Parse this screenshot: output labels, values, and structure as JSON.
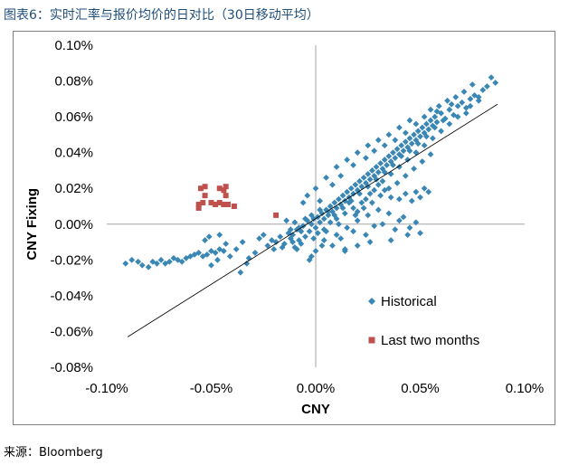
{
  "figure": {
    "title": "图表6：实时汇率与报价均价的日对比（30日移动平均）",
    "source": "来源：Bloomberg"
  },
  "colors": {
    "historical": "#3a87b5",
    "last_two_months": "#c0504d",
    "axis": "#a6a6a6",
    "trend": "#000000"
  },
  "chart_data": {
    "type": "scatter",
    "title": "",
    "xlabel": "CNY",
    "ylabel": "CNY Fixing",
    "xlim": [
      -0.1,
      0.1
    ],
    "ylim": [
      -0.08,
      0.1
    ],
    "x_ticks": [
      "-0.10%",
      "-0.05%",
      "0.00%",
      "0.05%",
      "0.10%"
    ],
    "y_ticks": [
      "0.10%",
      "0.08%",
      "0.06%",
      "0.04%",
      "0.02%",
      "0.00%",
      "-0.02%",
      "-0.04%",
      "-0.06%",
      "-0.08%"
    ],
    "legend": [
      "Historical",
      "Last two months"
    ],
    "trendline": {
      "x": [
        -0.09,
        0.087
      ],
      "y": [
        -0.063,
        0.067
      ]
    },
    "series": [
      {
        "name": "Historical",
        "marker": "diamond",
        "points": [
          [
            -0.091,
            -0.022
          ],
          [
            -0.088,
            -0.02
          ],
          [
            -0.085,
            -0.021
          ],
          [
            -0.083,
            -0.023
          ],
          [
            -0.08,
            -0.024
          ],
          [
            -0.078,
            -0.021
          ],
          [
            -0.076,
            -0.022
          ],
          [
            -0.074,
            -0.02
          ],
          [
            -0.072,
            -0.022
          ],
          [
            -0.07,
            -0.021
          ],
          [
            -0.068,
            -0.019
          ],
          [
            -0.066,
            -0.02
          ],
          [
            -0.064,
            -0.021
          ],
          [
            -0.062,
            -0.019
          ],
          [
            -0.06,
            -0.018
          ],
          [
            -0.058,
            -0.017
          ],
          [
            -0.056,
            -0.016
          ],
          [
            -0.054,
            -0.018
          ],
          [
            -0.052,
            -0.017
          ],
          [
            -0.05,
            -0.015
          ],
          [
            -0.048,
            -0.016
          ],
          [
            -0.046,
            -0.014
          ],
          [
            -0.044,
            -0.015
          ],
          [
            -0.053,
            -0.009
          ],
          [
            -0.051,
            -0.007
          ],
          [
            -0.046,
            -0.006
          ],
          [
            -0.043,
            -0.011
          ],
          [
            -0.047,
            -0.02
          ],
          [
            -0.05,
            -0.023
          ],
          [
            -0.041,
            -0.018
          ],
          [
            -0.038,
            -0.014
          ],
          [
            -0.035,
            -0.01
          ],
          [
            -0.033,
            -0.022
          ],
          [
            -0.036,
            -0.027
          ],
          [
            -0.032,
            -0.019
          ],
          [
            -0.029,
            -0.016
          ],
          [
            -0.027,
            -0.008
          ],
          [
            -0.025,
            -0.006
          ],
          [
            -0.023,
            -0.012
          ],
          [
            -0.021,
            -0.009
          ],
          [
            -0.019,
            -0.01
          ],
          [
            -0.017,
            -0.007
          ],
          [
            -0.015,
            -0.011
          ],
          [
            -0.013,
            -0.005
          ],
          [
            -0.012,
            -0.008
          ],
          [
            -0.011,
            -0.006
          ],
          [
            -0.01,
            -0.013
          ],
          [
            -0.009,
            -0.003
          ],
          [
            -0.008,
            -0.009
          ],
          [
            -0.007,
            -0.004
          ],
          [
            -0.006,
            -0.001
          ],
          [
            -0.005,
            -0.007
          ],
          [
            -0.004,
            0.002
          ],
          [
            -0.003,
            -0.004
          ],
          [
            -0.002,
            0.0
          ],
          [
            -0.001,
            0.003
          ],
          [
            0.0,
            -0.002
          ],
          [
            0.001,
            0.004
          ],
          [
            0.002,
            0.001
          ],
          [
            0.003,
            0.006
          ],
          [
            0.004,
            0.003
          ],
          [
            0.005,
            0.008
          ],
          [
            0.006,
            0.005
          ],
          [
            0.007,
            0.01
          ],
          [
            0.008,
            0.007
          ],
          [
            0.009,
            0.012
          ],
          [
            0.01,
            0.009
          ],
          [
            0.011,
            0.014
          ],
          [
            0.012,
            0.011
          ],
          [
            0.013,
            0.016
          ],
          [
            0.014,
            0.013
          ],
          [
            0.015,
            0.018
          ],
          [
            0.016,
            0.015
          ],
          [
            0.017,
            0.02
          ],
          [
            0.018,
            0.017
          ],
          [
            0.019,
            0.022
          ],
          [
            0.02,
            0.019
          ],
          [
            0.021,
            0.024
          ],
          [
            0.022,
            0.021
          ],
          [
            0.023,
            0.026
          ],
          [
            0.024,
            0.023
          ],
          [
            0.025,
            0.028
          ],
          [
            0.026,
            0.025
          ],
          [
            0.027,
            0.03
          ],
          [
            0.028,
            0.027
          ],
          [
            0.029,
            0.032
          ],
          [
            0.03,
            0.029
          ],
          [
            0.031,
            0.034
          ],
          [
            0.032,
            0.031
          ],
          [
            0.033,
            0.036
          ],
          [
            0.034,
            0.033
          ],
          [
            0.035,
            0.038
          ],
          [
            0.036,
            0.035
          ],
          [
            0.037,
            0.04
          ],
          [
            0.038,
            0.037
          ],
          [
            0.039,
            0.042
          ],
          [
            0.04,
            0.039
          ],
          [
            0.041,
            0.044
          ],
          [
            0.042,
            0.041
          ],
          [
            0.043,
            0.046
          ],
          [
            0.044,
            0.043
          ],
          [
            0.045,
            0.048
          ],
          [
            0.046,
            0.045
          ],
          [
            0.047,
            0.05
          ],
          [
            0.048,
            0.047
          ],
          [
            0.049,
            0.052
          ],
          [
            0.05,
            0.049
          ],
          [
            0.051,
            0.054
          ],
          [
            0.052,
            0.051
          ],
          [
            0.053,
            0.056
          ],
          [
            0.054,
            0.053
          ],
          [
            0.055,
            0.058
          ],
          [
            0.056,
            0.055
          ],
          [
            0.057,
            0.06
          ],
          [
            0.058,
            0.057
          ],
          [
            0.06,
            0.062
          ],
          [
            0.062,
            0.059
          ],
          [
            0.064,
            0.064
          ],
          [
            0.066,
            0.061
          ],
          [
            0.068,
            0.066
          ],
          [
            0.07,
            0.068
          ],
          [
            0.072,
            0.065
          ],
          [
            0.074,
            0.07
          ],
          [
            0.076,
            0.072
          ],
          [
            0.078,
            0.069
          ],
          [
            0.08,
            0.075
          ],
          [
            0.082,
            0.077
          ],
          [
            0.084,
            0.082
          ],
          [
            0.086,
            0.079
          ],
          [
            0.075,
            0.078
          ],
          [
            0.071,
            0.074
          ],
          [
            0.067,
            0.071
          ],
          [
            0.063,
            0.069
          ],
          [
            0.059,
            0.066
          ],
          [
            0.055,
            0.064
          ],
          [
            0.045,
            0.058
          ],
          [
            0.04,
            0.054
          ],
          [
            0.035,
            0.05
          ],
          [
            0.03,
            0.047
          ],
          [
            0.025,
            0.044
          ],
          [
            0.02,
            0.04
          ],
          [
            0.015,
            0.036
          ],
          [
            0.01,
            0.032
          ],
          [
            0.005,
            0.026
          ],
          [
            0.0,
            0.02
          ],
          [
            -0.004,
            0.016
          ],
          [
            -0.006,
            0.012
          ],
          [
            0.002,
            0.013
          ],
          [
            0.008,
            0.022
          ],
          [
            0.012,
            0.027
          ],
          [
            0.018,
            0.033
          ],
          [
            0.024,
            0.037
          ],
          [
            0.028,
            0.041
          ],
          [
            0.033,
            0.044
          ],
          [
            0.038,
            0.047
          ],
          [
            0.043,
            0.051
          ],
          [
            0.048,
            0.056
          ],
          [
            0.052,
            0.06
          ],
          [
            0.058,
            0.063
          ],
          [
            0.005,
            -0.004
          ],
          [
            0.01,
            -0.006
          ],
          [
            0.015,
            -0.002
          ],
          [
            0.02,
            0.002
          ],
          [
            0.025,
            0.005
          ],
          [
            0.03,
            0.008
          ],
          [
            0.035,
            0.006
          ],
          [
            0.04,
            0.002
          ],
          [
            0.045,
            -0.002
          ],
          [
            0.05,
            -0.005
          ],
          [
            0.038,
            -0.003
          ],
          [
            0.028,
            -0.001
          ],
          [
            0.018,
            -0.004
          ],
          [
            0.012,
            -0.008
          ],
          [
            0.024,
            -0.006
          ],
          [
            0.032,
            0.0
          ],
          [
            0.042,
            0.004
          ],
          [
            0.048,
            0.001
          ],
          [
            0.044,
            -0.006
          ],
          [
            0.036,
            -0.009
          ],
          [
            0.026,
            -0.01
          ],
          [
            0.02,
            -0.012
          ],
          [
            0.014,
            -0.015
          ],
          [
            0.008,
            -0.012
          ],
          [
            0.004,
            -0.009
          ],
          [
            -0.002,
            -0.018
          ],
          [
            0.0,
            -0.015
          ],
          [
            0.003,
            -0.012
          ],
          [
            -0.003,
            -0.02
          ],
          [
            0.014,
            -0.014
          ],
          [
            0.05,
            0.015
          ],
          [
            0.052,
            0.02
          ],
          [
            0.054,
            0.018
          ],
          [
            0.048,
            0.018
          ],
          [
            0.046,
            0.013
          ],
          [
            0.04,
            0.014
          ],
          [
            0.043,
            0.017
          ],
          [
            0.036,
            0.015
          ],
          [
            0.033,
            0.019
          ],
          [
            0.03,
            0.022
          ],
          [
            0.026,
            0.017
          ],
          [
            0.022,
            0.012
          ],
          [
            0.018,
            0.009
          ],
          [
            0.014,
            0.006
          ],
          [
            0.01,
            0.003
          ],
          [
            0.006,
            0.007
          ],
          [
            0.002,
            0.008
          ],
          [
            -0.002,
            0.005
          ],
          [
            -0.005,
            0.003
          ],
          [
            -0.008,
            -0.002
          ],
          [
            -0.01,
            0.001
          ],
          [
            -0.012,
            -0.003
          ],
          [
            -0.014,
            0.002
          ],
          [
            0.016,
            0.012
          ],
          [
            0.02,
            0.007
          ],
          [
            0.024,
            0.014
          ],
          [
            0.028,
            0.019
          ],
          [
            0.032,
            0.024
          ],
          [
            0.036,
            0.028
          ],
          [
            0.04,
            0.032
          ],
          [
            0.044,
            0.036
          ],
          [
            0.048,
            0.04
          ],
          [
            0.052,
            0.044
          ],
          [
            0.056,
            0.048
          ],
          [
            0.06,
            0.052
          ],
          [
            0.064,
            0.056
          ],
          [
            0.068,
            0.06
          ],
          [
            0.072,
            0.062
          ],
          [
            0.074,
            0.066
          ],
          [
            0.078,
            0.071
          ],
          [
            0.065,
            0.067
          ],
          [
            0.061,
            0.058
          ],
          [
            0.057,
            0.054
          ],
          [
            0.053,
            0.049
          ],
          [
            0.049,
            0.045
          ],
          [
            0.045,
            0.041
          ],
          [
            0.041,
            0.038
          ],
          [
            0.037,
            0.033
          ],
          [
            0.033,
            0.029
          ],
          [
            0.029,
            0.025
          ],
          [
            0.025,
            0.021
          ],
          [
            0.021,
            0.017
          ],
          [
            0.017,
            0.013
          ],
          [
            0.013,
            0.009
          ],
          [
            0.009,
            0.005
          ],
          [
            0.019,
            0.005
          ],
          [
            0.023,
            0.009
          ],
          [
            0.027,
            0.012
          ],
          [
            0.031,
            0.016
          ],
          [
            0.035,
            0.02
          ],
          [
            0.039,
            0.023
          ],
          [
            0.043,
            0.027
          ],
          [
            0.047,
            0.031
          ],
          [
            0.051,
            0.035
          ],
          [
            0.055,
            0.039
          ],
          [
            0.001,
            -0.005
          ],
          [
            -0.001,
            -0.008
          ],
          [
            0.004,
            -0.003
          ],
          [
            0.007,
            0.001
          ],
          [
            0.011,
            0.0
          ],
          [
            -0.007,
            -0.011
          ],
          [
            -0.009,
            -0.014
          ],
          [
            -0.011,
            -0.01
          ],
          [
            -0.016,
            -0.013
          ],
          [
            -0.02,
            -0.014
          ]
        ]
      },
      {
        "name": "Last two months",
        "marker": "square",
        "points": [
          [
            -0.055,
            0.02
          ],
          [
            -0.053,
            0.021
          ],
          [
            -0.046,
            0.02
          ],
          [
            -0.044,
            0.019
          ],
          [
            -0.043,
            0.021
          ],
          [
            -0.053,
            0.016
          ],
          [
            -0.043,
            0.016
          ],
          [
            -0.056,
            0.011
          ],
          [
            -0.054,
            0.012
          ],
          [
            -0.05,
            0.012
          ],
          [
            -0.048,
            0.011
          ],
          [
            -0.046,
            0.012
          ],
          [
            -0.044,
            0.011
          ],
          [
            -0.042,
            0.011
          ],
          [
            -0.039,
            0.01
          ],
          [
            -0.056,
            0.009
          ],
          [
            -0.019,
            0.005
          ]
        ]
      }
    ]
  }
}
